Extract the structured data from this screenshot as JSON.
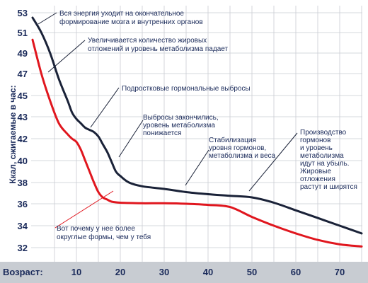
{
  "chart_data": {
    "type": "line",
    "ylabel": "Ккал, сжигаемые в час:",
    "xlabel": "Возраст:",
    "xlim": [
      0,
      75
    ],
    "ylim": [
      30.5,
      53
    ],
    "y_ticks": [
      53,
      51,
      49,
      47,
      45,
      43,
      42,
      40,
      38,
      36,
      34,
      32
    ],
    "x_ticks": [
      10,
      20,
      30,
      40,
      50,
      60,
      70
    ],
    "grid": true,
    "series": [
      {
        "color": "#1a2238",
        "points": [
          [
            0,
            52.5
          ],
          [
            2,
            51
          ],
          [
            4,
            49
          ],
          [
            6,
            46.5
          ],
          [
            8,
            44.5
          ],
          [
            9,
            43.4
          ],
          [
            10,
            42.9
          ],
          [
            11,
            42.7
          ],
          [
            12,
            42.5
          ],
          [
            13,
            42.4
          ],
          [
            14,
            42.3
          ],
          [
            15,
            42.1
          ],
          [
            16,
            41.5
          ],
          [
            17,
            40.8
          ],
          [
            18,
            39.9
          ],
          [
            19,
            39
          ],
          [
            20,
            38.6
          ],
          [
            22,
            38
          ],
          [
            25,
            37.65
          ],
          [
            30,
            37.4
          ],
          [
            35,
            37.1
          ],
          [
            40,
            36.9
          ],
          [
            45,
            36.75
          ],
          [
            50,
            36.6
          ],
          [
            55,
            36.1
          ],
          [
            60,
            35.4
          ],
          [
            65,
            34.7
          ],
          [
            70,
            34
          ],
          [
            75,
            33.3
          ]
        ]
      },
      {
        "color": "#e0161e",
        "points": [
          [
            0,
            50.3
          ],
          [
            2,
            47
          ],
          [
            4,
            44.5
          ],
          [
            6,
            42.7
          ],
          [
            8,
            42.2
          ],
          [
            9,
            42
          ],
          [
            10,
            41.7
          ],
          [
            11,
            41
          ],
          [
            12,
            40
          ],
          [
            13,
            39
          ],
          [
            14,
            38
          ],
          [
            15,
            37.1
          ],
          [
            16,
            36.6
          ],
          [
            17,
            36.4
          ],
          [
            18,
            36.2
          ],
          [
            20,
            36.1
          ],
          [
            25,
            36.05
          ],
          [
            30,
            36.05
          ],
          [
            35,
            36
          ],
          [
            40,
            35.9
          ],
          [
            45,
            35.7
          ],
          [
            50,
            34.8
          ],
          [
            55,
            34
          ],
          [
            60,
            33.3
          ],
          [
            65,
            32.7
          ],
          [
            70,
            32.3
          ],
          [
            75,
            32.1
          ]
        ]
      }
    ],
    "annotations": [
      {
        "lines": [
          "Вся энергия уходит на окончательное",
          "формирование мозга и внутренних органов"
        ]
      },
      {
        "lines": [
          "Увеличивается количество жировых",
          "отложений и уровень метаболизма падает"
        ]
      },
      {
        "lines": [
          "Подростковые гормональные выбросы"
        ]
      },
      {
        "lines": [
          "Выбросы закончились,",
          "уровень метаболизма",
          "понижается"
        ]
      },
      {
        "lines": [
          "Стабилизация",
          "уровня гормонов,",
          "метаболизма и веса"
        ]
      },
      {
        "lines": [
          "Производство",
          "гормонов",
          "и уровень",
          "метаболизма",
          "идут на убыль.",
          "Жировые",
          "отложения",
          "растут и ширятся"
        ]
      },
      {
        "lines": [
          "Вот почему у нее более",
          "округлые формы, чем у тебя"
        ]
      }
    ]
  }
}
